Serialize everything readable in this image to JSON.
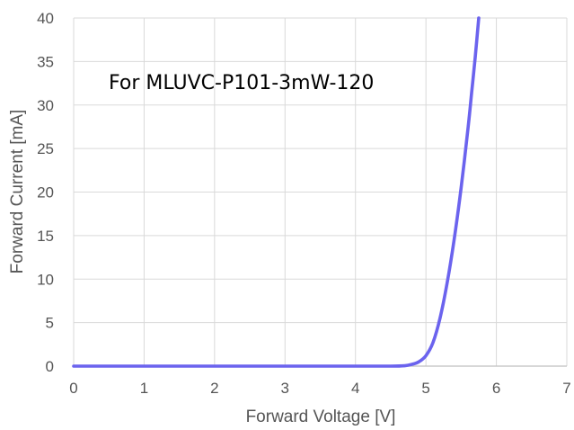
{
  "chart_data": {
    "type": "line",
    "title": "",
    "annotation": "For MLUVC-P101-3mW-120",
    "xlabel": "Forward Voltage [V]",
    "ylabel": "Forward Current [mA]",
    "xlim": [
      0,
      7
    ],
    "ylim": [
      0,
      40
    ],
    "xticks": [
      0,
      1,
      2,
      3,
      4,
      5,
      6,
      7
    ],
    "yticks": [
      0,
      5,
      10,
      15,
      20,
      25,
      30,
      35,
      40
    ],
    "grid": true,
    "legend": "none",
    "series": [
      {
        "color": "#6b63ee",
        "x": [
          0,
          1,
          2,
          3,
          4,
          4.5,
          4.7,
          4.8,
          4.9,
          5.0,
          5.1,
          5.2,
          5.3,
          5.4,
          5.5,
          5.6,
          5.65,
          5.7,
          5.75
        ],
        "y": [
          0,
          0,
          0,
          0,
          0,
          0,
          0.05,
          0.2,
          0.5,
          1.2,
          2.7,
          5.5,
          9.5,
          14.5,
          20.5,
          27.5,
          31.5,
          35.5,
          40
        ]
      }
    ]
  }
}
